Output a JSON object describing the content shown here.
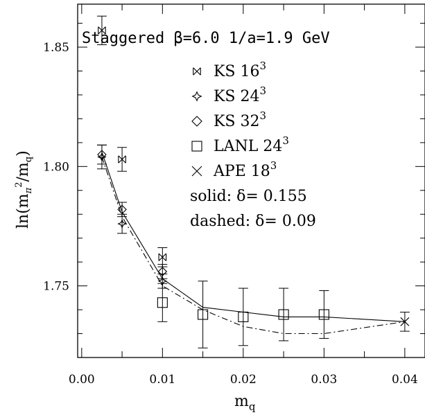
{
  "chart_data": {
    "type": "scatter",
    "title_text": "Staggered β=6.0 1/a=1.9 GeV",
    "xlabel": "m",
    "xlabel_sub": "q",
    "ylabel": "ln(m",
    "ylabel_sub": "π",
    "ylabel_sup": "2",
    "ylabel_rest": "/m",
    "ylabel_sub2": "q",
    "ylabel_close": ")",
    "xlim": [
      -0.0005,
      0.0425
    ],
    "ylim": [
      1.72,
      1.868
    ],
    "x_ticks": [
      0.0,
      0.01,
      0.02,
      0.03,
      0.04
    ],
    "x_tick_labels": [
      "0.00",
      "0.01",
      "0.02",
      "0.03",
      "0.04"
    ],
    "y_ticks": [
      1.75,
      1.8,
      1.85
    ],
    "y_tick_labels": [
      "1.75",
      "1.80",
      "1.85"
    ],
    "grid": false,
    "legend_position": "upper-right",
    "series": [
      {
        "name": "KS 16",
        "name_sup": "3",
        "marker": "crossed-square",
        "points": [
          {
            "x": 0.0025,
            "y": 1.857,
            "err": 0.006
          },
          {
            "x": 0.005,
            "y": 1.803,
            "err": 0.005
          },
          {
            "x": 0.01,
            "y": 1.762,
            "err": 0.004
          }
        ]
      },
      {
        "name": "KS 24",
        "name_sup": "3",
        "marker": "star",
        "points": [
          {
            "x": 0.0025,
            "y": 1.804,
            "err": 0.005
          },
          {
            "x": 0.005,
            "y": 1.776,
            "err": 0.004
          },
          {
            "x": 0.01,
            "y": 1.752,
            "err": 0.003
          }
        ]
      },
      {
        "name": "KS 32",
        "name_sup": "3",
        "marker": "diamond",
        "points": [
          {
            "x": 0.0025,
            "y": 1.805,
            "err": 0.004
          },
          {
            "x": 0.005,
            "y": 1.782,
            "err": 0.003
          },
          {
            "x": 0.01,
            "y": 1.756,
            "err": 0.003
          }
        ]
      },
      {
        "name": "LANL 24",
        "name_sup": "3",
        "marker": "square",
        "points": [
          {
            "x": 0.01,
            "y": 1.743,
            "err": 0.008
          },
          {
            "x": 0.015,
            "y": 1.738,
            "err": 0.014
          },
          {
            "x": 0.02,
            "y": 1.737,
            "err": 0.012
          },
          {
            "x": 0.025,
            "y": 1.738,
            "err": 0.011
          },
          {
            "x": 0.03,
            "y": 1.738,
            "err": 0.01
          }
        ]
      },
      {
        "name": "APE 18",
        "name_sup": "3",
        "marker": "x",
        "points": [
          {
            "x": 0.04,
            "y": 1.735,
            "err": 0.004
          }
        ]
      }
    ],
    "fits": [
      {
        "label": "solid: δ= 0.155",
        "style": "solid",
        "points": [
          [
            0.0025,
            1.806
          ],
          [
            0.005,
            1.781
          ],
          [
            0.01,
            1.753
          ],
          [
            0.015,
            1.741
          ],
          [
            0.02,
            1.739
          ],
          [
            0.025,
            1.737
          ],
          [
            0.03,
            1.737
          ],
          [
            0.04,
            1.735
          ]
        ]
      },
      {
        "label": "dashed: δ= 0.09",
        "style": "dashdot",
        "points": [
          [
            0.0025,
            1.804
          ],
          [
            0.005,
            1.779
          ],
          [
            0.01,
            1.75
          ],
          [
            0.015,
            1.74
          ],
          [
            0.02,
            1.733
          ],
          [
            0.025,
            1.73
          ],
          [
            0.03,
            1.73
          ],
          [
            0.04,
            1.735
          ]
        ]
      }
    ]
  }
}
